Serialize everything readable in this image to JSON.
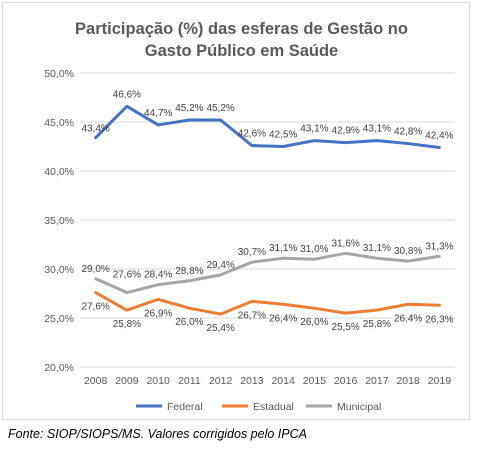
{
  "chart_data": {
    "type": "line",
    "title_line1": "Participação (%) das esferas de Gestão no",
    "title_line2": "Gasto Público em Saúde",
    "categories": [
      "2008",
      "2009",
      "2010",
      "2011",
      "2012",
      "2013",
      "2014",
      "2015",
      "2016",
      "2017",
      "2018",
      "2019"
    ],
    "y_ticks": [
      "20,0%",
      "25,0%",
      "30,0%",
      "35,0%",
      "40,0%",
      "45,0%",
      "50,0%"
    ],
    "ylim": [
      20,
      50
    ],
    "grid": true,
    "legend_position": "bottom",
    "series": [
      {
        "name": "Federal",
        "color": "#4472c4",
        "values": [
          43.4,
          46.6,
          44.7,
          45.2,
          45.2,
          42.6,
          42.5,
          43.1,
          42.9,
          43.1,
          42.8,
          42.4
        ],
        "labels": [
          "43,4%",
          "46,6%",
          "44,7%",
          "45,2%",
          "45,2%",
          "42,6%",
          "42,5%",
          "43,1%",
          "42,9%",
          "43,1%",
          "42,8%",
          "42,4%"
        ]
      },
      {
        "name": "Estadual",
        "color": "#ed7d31",
        "values": [
          27.6,
          25.8,
          26.9,
          26.0,
          25.4,
          26.7,
          26.4,
          26.0,
          25.5,
          25.8,
          26.4,
          26.3
        ],
        "labels": [
          "27,6%",
          "25,8%",
          "26,9%",
          "26,0%",
          "25,4%",
          "26,7%",
          "26,4%",
          "26,0%",
          "25,5%",
          "25,8%",
          "26,4%",
          "26,3%"
        ]
      },
      {
        "name": "Municipal",
        "color": "#a5a5a5",
        "values": [
          29.0,
          27.6,
          28.4,
          28.8,
          29.4,
          30.7,
          31.1,
          31.0,
          31.6,
          31.1,
          30.8,
          31.3
        ],
        "labels": [
          "29,0%",
          "27,6%",
          "28,4%",
          "28,8%",
          "29,4%",
          "30,7%",
          "31,1%",
          "31,0%",
          "31,6%",
          "31,1%",
          "30,8%",
          "31,3%"
        ]
      }
    ]
  },
  "source_text": "Fonte: SIOP/SIOPS/MS. Valores corrigidos pelo IPCA"
}
